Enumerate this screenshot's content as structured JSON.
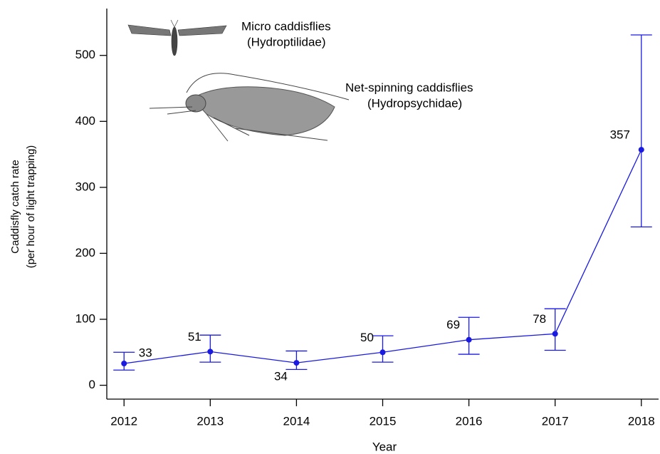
{
  "chart_data": {
    "type": "line",
    "x_label": "Year",
    "y_label": [
      "Caddisfly catch rate",
      "(per hour of light trapping)"
    ],
    "annotations": [
      "Micro caddisflies",
      "(Hydroptilidae)",
      "Net-spinning caddisflies",
      "(Hydropsychidae)"
    ],
    "x": [
      2012,
      2013,
      2014,
      2015,
      2016,
      2017,
      2018
    ],
    "series": [
      {
        "color": "#1a1ae0",
        "values": [
          33,
          51,
          34,
          50,
          69,
          78,
          357
        ],
        "lower": [
          23,
          35,
          24,
          35,
          47,
          53,
          240
        ],
        "upper": [
          50,
          76,
          52,
          75,
          103,
          116,
          531
        ]
      }
    ],
    "xlim": [
      2011.8,
      2018.2
    ],
    "xticks": [
      2012,
      2013,
      2014,
      2015,
      2016,
      2017,
      2018
    ],
    "ylim": [
      -21,
      571
    ],
    "yticks": [
      0,
      100,
      200,
      300,
      400,
      500
    ]
  }
}
